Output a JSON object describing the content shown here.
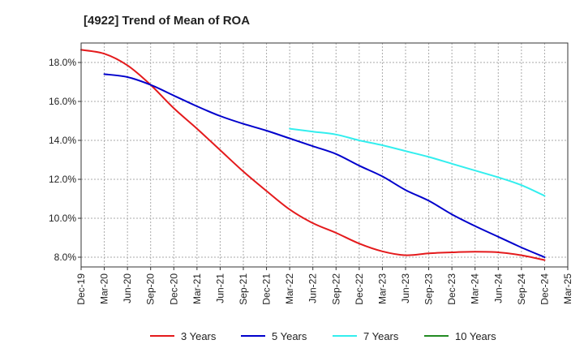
{
  "chart_data": {
    "type": "line",
    "title": "[4922]  Trend of Mean of ROA",
    "xlabel": "",
    "ylabel": "",
    "ylim": [
      7.5,
      19.0
    ],
    "y_ticks": [
      8.0,
      10.0,
      12.0,
      14.0,
      16.0,
      18.0
    ],
    "y_tick_labels": [
      "8.0%",
      "10.0%",
      "12.0%",
      "14.0%",
      "16.0%",
      "18.0%"
    ],
    "categories": [
      "Dec-19",
      "Mar-20",
      "Jun-20",
      "Sep-20",
      "Dec-20",
      "Mar-21",
      "Jun-21",
      "Sep-21",
      "Dec-21",
      "Mar-22",
      "Jun-22",
      "Sep-22",
      "Dec-22",
      "Mar-23",
      "Jun-23",
      "Sep-23",
      "Dec-23",
      "Mar-24",
      "Jun-24",
      "Sep-24",
      "Dec-24",
      "Mar-25"
    ],
    "grid": true,
    "legend_position": "bottom",
    "series": [
      {
        "name": "3 Years",
        "color": "#e41a1c",
        "values": [
          18.65,
          18.45,
          17.85,
          16.85,
          15.65,
          14.6,
          13.5,
          12.4,
          11.4,
          10.45,
          9.75,
          9.25,
          8.7,
          8.3,
          8.1,
          8.2,
          8.25,
          8.28,
          8.25,
          8.1,
          7.85,
          null
        ]
      },
      {
        "name": "5 Years",
        "color": "#0000cc",
        "values": [
          null,
          17.4,
          17.25,
          16.85,
          16.3,
          15.75,
          15.25,
          14.85,
          14.5,
          14.1,
          13.7,
          13.3,
          12.7,
          12.15,
          11.45,
          10.9,
          10.2,
          9.6,
          9.05,
          8.5,
          8.0,
          null
        ]
      },
      {
        "name": "7 Years",
        "color": "#33eeee",
        "values": [
          null,
          null,
          null,
          null,
          null,
          null,
          null,
          null,
          null,
          14.6,
          14.45,
          14.3,
          14.0,
          13.75,
          13.45,
          13.15,
          12.8,
          12.45,
          12.1,
          11.7,
          11.15,
          null
        ]
      },
      {
        "name": "10 Years",
        "color": "#228b22",
        "values": [
          null,
          null,
          null,
          null,
          null,
          null,
          null,
          null,
          null,
          null,
          null,
          null,
          null,
          null,
          null,
          null,
          null,
          null,
          null,
          null,
          null,
          null
        ]
      }
    ]
  }
}
